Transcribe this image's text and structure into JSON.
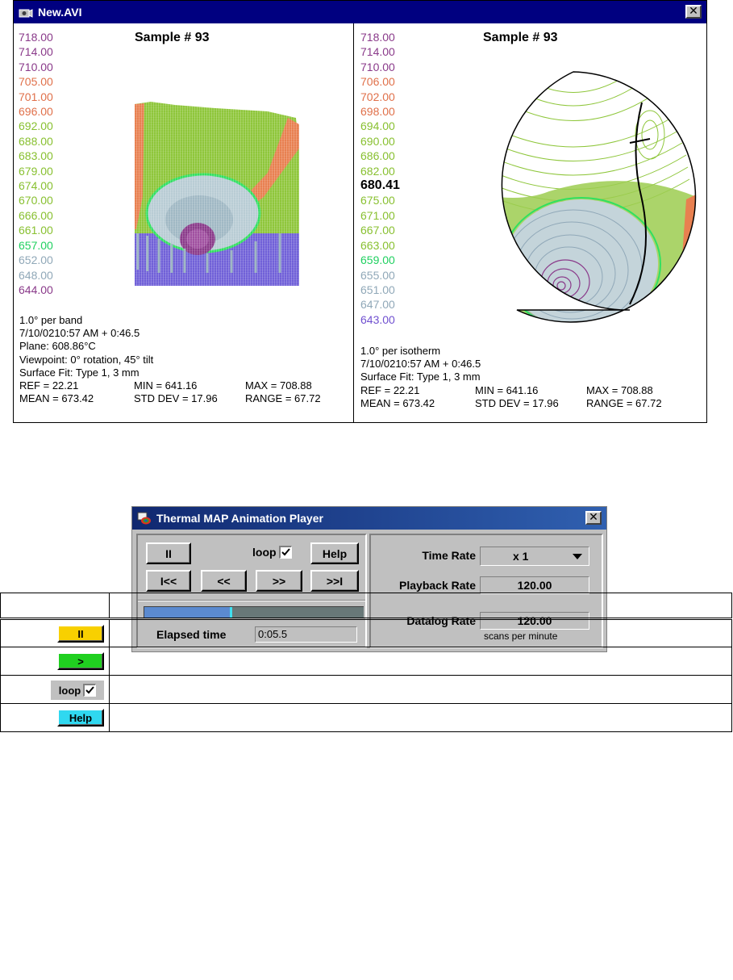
{
  "avi_window": {
    "title": "New.AVI",
    "left_pane": {
      "title": "Sample # 93",
      "legend": [
        {
          "value": "718.00",
          "color": "#8a3a8a"
        },
        {
          "value": "714.00",
          "color": "#8a3a8a"
        },
        {
          "value": "710.00",
          "color": "#8a3a8a"
        },
        {
          "value": "705.00",
          "color": "#e0704a"
        },
        {
          "value": "701.00",
          "color": "#e0704a"
        },
        {
          "value": "696.00",
          "color": "#e0704a"
        },
        {
          "value": "692.00",
          "color": "#88c030"
        },
        {
          "value": "688.00",
          "color": "#88c030"
        },
        {
          "value": "683.00",
          "color": "#88c030"
        },
        {
          "value": "679.00",
          "color": "#88c030"
        },
        {
          "value": "674.00",
          "color": "#88c030"
        },
        {
          "value": "670.00",
          "color": "#88c030"
        },
        {
          "value": "666.00",
          "color": "#88c030"
        },
        {
          "value": "661.00",
          "color": "#88c030"
        },
        {
          "value": "657.00",
          "color": "#20d060"
        },
        {
          "value": "652.00",
          "color": "#90a8b8"
        },
        {
          "value": "648.00",
          "color": "#90a8b8"
        },
        {
          "value": "644.00",
          "color": "#8a3a8a"
        }
      ],
      "info": [
        "1.0° per band",
        "7/10/0210:57 AM + 0:46.5",
        "Plane: 608.86°C",
        "Viewpoint: 0° rotation, 45° tilt",
        "Surface Fit: Type 1, 3 mm"
      ],
      "stats": [
        [
          "REF = 22.21",
          "MIN = 641.16",
          "MAX = 708.88"
        ],
        [
          "MEAN = 673.42",
          "STD DEV = 17.96",
          "RANGE = 67.72"
        ]
      ]
    },
    "right_pane": {
      "title": "Sample # 93",
      "legend": [
        {
          "value": "718.00",
          "color": "#8a3a8a"
        },
        {
          "value": "714.00",
          "color": "#8a3a8a"
        },
        {
          "value": "710.00",
          "color": "#8a3a8a"
        },
        {
          "value": "706.00",
          "color": "#e0704a"
        },
        {
          "value": "702.00",
          "color": "#e0704a"
        },
        {
          "value": "698.00",
          "color": "#e0704a"
        },
        {
          "value": "694.00",
          "color": "#88c030"
        },
        {
          "value": "690.00",
          "color": "#88c030"
        },
        {
          "value": "686.00",
          "color": "#88c030"
        },
        {
          "value": "682.00",
          "color": "#88c030"
        },
        {
          "value": "680.41",
          "color": "#000000",
          "highlight": true
        },
        {
          "value": "675.00",
          "color": "#88c030"
        },
        {
          "value": "671.00",
          "color": "#88c030"
        },
        {
          "value": "667.00",
          "color": "#88c030"
        },
        {
          "value": "663.00",
          "color": "#88c030"
        },
        {
          "value": "659.00",
          "color": "#20d060"
        },
        {
          "value": "655.00",
          "color": "#90a8b8"
        },
        {
          "value": "651.00",
          "color": "#90a8b8"
        },
        {
          "value": "647.00",
          "color": "#90a8b8"
        },
        {
          "value": "643.00",
          "color": "#7050d0"
        }
      ],
      "info": [
        "1.0° per isotherm",
        "7/10/0210:57 AM + 0:46.5",
        "Surface Fit: Type 1, 3 mm"
      ],
      "stats": [
        [
          "REF = 22.21",
          "MIN = 641.16",
          "MAX = 708.88"
        ],
        [
          "MEAN = 673.42",
          "STD DEV = 17.96",
          "RANGE = 67.72"
        ]
      ]
    }
  },
  "player": {
    "title": "Thermal MAP Animation Player",
    "pause_label": "II",
    "loop_label": "loop",
    "loop_checked": true,
    "help_label": "Help",
    "first_label": "I<<",
    "rewind_label": "<<",
    "forward_label": ">>",
    "last_label": ">>I",
    "progress_fraction": 0.39,
    "elapsed_label": "Elapsed time",
    "elapsed_value": "0:05.5",
    "time_rate_label": "Time Rate",
    "time_rate_value": "x 1",
    "playback_rate_label": "Playback Rate",
    "playback_rate_value": "120.00",
    "datalog_rate_label": "Datalog Rate",
    "datalog_rate_value": "120.00",
    "datalog_units": "scans per minute"
  },
  "table": {
    "rows": [
      {
        "icon": "pause-button-sample",
        "label": "II",
        "color": "#f8d000"
      },
      {
        "icon": "play-button-sample",
        "label": ">",
        "color": "#20d020"
      },
      {
        "icon": "loop-checkbox-sample",
        "label": "loop",
        "color": "#c0c0c0"
      },
      {
        "icon": "help-button-sample",
        "label": "Help",
        "color": "#30d8f0"
      }
    ]
  }
}
